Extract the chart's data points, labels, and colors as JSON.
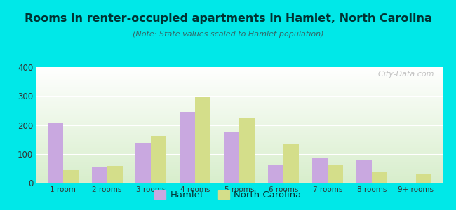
{
  "title": "Rooms in renter-occupied apartments in Hamlet, North Carolina",
  "subtitle": "(Note: State values scaled to Hamlet population)",
  "categories": [
    "1 room",
    "2 rooms",
    "3 rooms",
    "4 rooms",
    "5 rooms",
    "6 rooms",
    "7 rooms",
    "8 rooms",
    "9+ rooms"
  ],
  "hamlet_values": [
    208,
    55,
    138,
    245,
    175,
    62,
    85,
    80,
    0
  ],
  "nc_values": [
    43,
    58,
    163,
    298,
    225,
    133,
    63,
    38,
    30
  ],
  "hamlet_color": "#c9a8e0",
  "nc_color": "#d4de8a",
  "bg_outer": "#00e8e8",
  "plot_bg_top": "#ffffff",
  "plot_bg_bottom": "#d8eecc",
  "ylim": [
    0,
    400
  ],
  "yticks": [
    0,
    100,
    200,
    300,
    400
  ],
  "bar_width": 0.35,
  "legend_labels": [
    "Hamlet",
    "North Carolina"
  ],
  "watermark": "  City-Data.com",
  "title_color": "#003333",
  "subtitle_color": "#336666",
  "tick_color": "#333333"
}
